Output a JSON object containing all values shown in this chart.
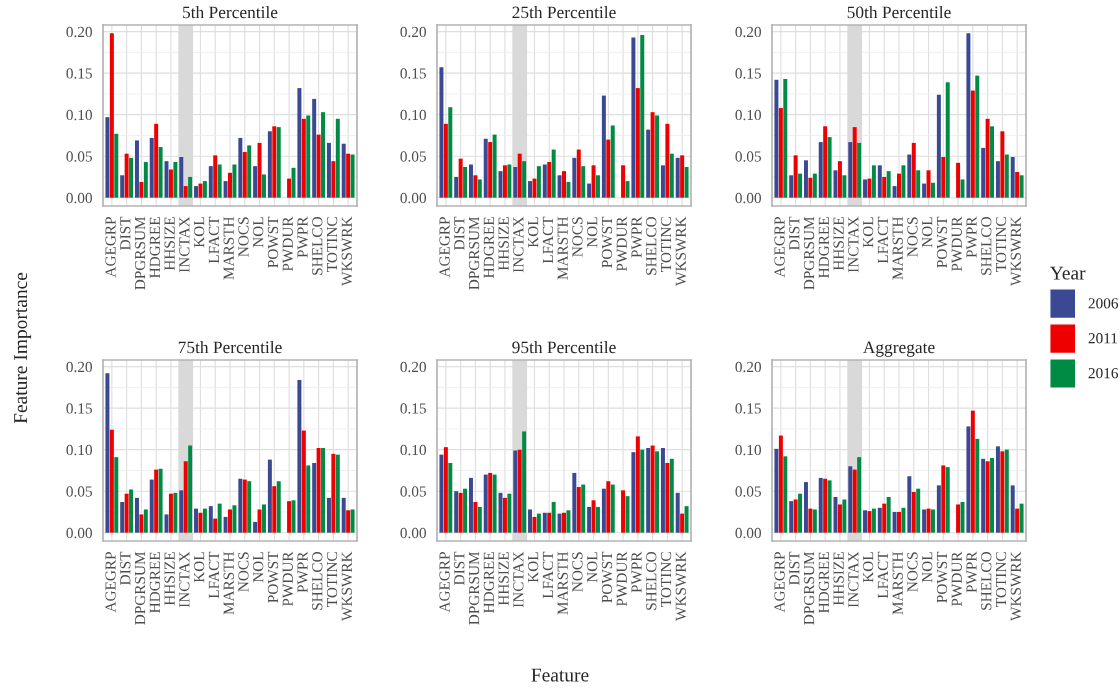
{
  "chart_data": [
    {
      "type": "bar",
      "title": "5th Percentile",
      "ylabel": "Feature Importance",
      "legend_title": "Year",
      "categories": [
        "AGEGRP",
        "DIST",
        "DPGRSUM",
        "HDGREE",
        "HHSIZE",
        "INCTAX",
        "KOL",
        "LFACT",
        "MARSTH",
        "NOCS",
        "NOL",
        "POWST",
        "PWDUR",
        "PWPR",
        "SHELCO",
        "TOTINC",
        "WKSWRK"
      ],
      "series": [
        {
          "name": "2006",
          "color": "#3b4992",
          "values": [
            0.097,
            0.027,
            0.069,
            0.072,
            0.044,
            0.049,
            0.014,
            0.038,
            0.02,
            0.072,
            0.038,
            0.08,
            null,
            0.132,
            0.119,
            0.066,
            0.065
          ]
        },
        {
          "name": "2011",
          "color": "#ee0000",
          "values": [
            0.198,
            0.053,
            0.019,
            0.089,
            0.034,
            0.014,
            0.017,
            0.051,
            0.03,
            0.055,
            0.066,
            0.086,
            0.023,
            0.095,
            0.076,
            0.044,
            0.053
          ]
        },
        {
          "name": "2016",
          "color": "#008b45",
          "values": [
            0.077,
            0.048,
            0.043,
            0.061,
            0.043,
            0.025,
            0.02,
            0.04,
            0.04,
            0.063,
            0.028,
            0.085,
            0.036,
            0.099,
            0.103,
            0.095,
            0.052
          ]
        }
      ],
      "ylim": [
        -0.01,
        0.208
      ],
      "yticks": [
        {
          "value": 0,
          "label": "0.00"
        },
        {
          "value": 0.05,
          "label": "0.05"
        },
        {
          "value": 0.1,
          "label": "0.10"
        },
        {
          "value": 0.15,
          "label": "0.15"
        },
        {
          "value": 0.2,
          "label": "0.20"
        }
      ],
      "bands": [
        {
          "axis": "x",
          "from": "INCTAX",
          "to": "INCTAX",
          "color": "#d9d9d9"
        }
      ],
      "grid": true,
      "legend": "right"
    },
    {
      "type": "bar",
      "title": "25th Percentile",
      "categories": [
        "AGEGRP",
        "DIST",
        "DPGRSUM",
        "HDGREE",
        "HHSIZE",
        "INCTAX",
        "KOL",
        "LFACT",
        "MARSTH",
        "NOCS",
        "NOL",
        "POWST",
        "PWDUR",
        "PWPR",
        "SHELCO",
        "TOTINC",
        "WKSWRK"
      ],
      "series": [
        {
          "name": "2006",
          "color": "#3b4992",
          "values": [
            0.157,
            0.025,
            0.04,
            0.071,
            0.032,
            0.037,
            0.02,
            0.04,
            0.027,
            0.048,
            0.017,
            0.123,
            null,
            0.193,
            0.082,
            0.039,
            0.048
          ]
        },
        {
          "name": "2011",
          "color": "#ee0000",
          "values": [
            0.089,
            0.047,
            0.027,
            0.067,
            0.039,
            0.053,
            0.023,
            0.043,
            0.032,
            0.058,
            0.039,
            0.07,
            0.039,
            0.132,
            0.103,
            0.089,
            0.051
          ]
        },
        {
          "name": "2016",
          "color": "#008b45",
          "values": [
            0.109,
            0.037,
            0.022,
            0.076,
            0.04,
            0.044,
            0.038,
            0.058,
            0.019,
            0.038,
            0.027,
            0.087,
            0.02,
            0.196,
            0.099,
            0.053,
            0.037
          ]
        }
      ],
      "ylim": [
        -0.01,
        0.208
      ],
      "yticks": [
        {
          "value": 0,
          "label": "0.00"
        },
        {
          "value": 0.05,
          "label": "0.05"
        },
        {
          "value": 0.1,
          "label": "0.10"
        },
        {
          "value": 0.15,
          "label": "0.15"
        },
        {
          "value": 0.2,
          "label": "0.20"
        }
      ],
      "bands": [
        {
          "axis": "x",
          "from": "INCTAX",
          "to": "INCTAX",
          "color": "#d9d9d9"
        }
      ],
      "grid": true,
      "legend": false
    },
    {
      "type": "bar",
      "title": "50th Percentile",
      "categories": [
        "AGEGRP",
        "DIST",
        "DPGRSUM",
        "HDGREE",
        "HHSIZE",
        "INCTAX",
        "KOL",
        "LFACT",
        "MARSTH",
        "NOCS",
        "NOL",
        "POWST",
        "PWDUR",
        "PWPR",
        "SHELCO",
        "TOTINC",
        "WKSWRK"
      ],
      "series": [
        {
          "name": "2006",
          "color": "#3b4992",
          "values": [
            0.142,
            0.027,
            0.045,
            0.067,
            0.033,
            0.067,
            0.022,
            0.039,
            0.014,
            0.052,
            0.017,
            0.124,
            null,
            0.198,
            0.06,
            0.044,
            0.049
          ]
        },
        {
          "name": "2011",
          "color": "#ee0000",
          "values": [
            0.108,
            0.051,
            0.024,
            0.086,
            0.044,
            0.085,
            0.023,
            0.025,
            0.029,
            0.066,
            0.033,
            0.049,
            0.042,
            0.129,
            0.095,
            0.08,
            0.031
          ]
        },
        {
          "name": "2016",
          "color": "#008b45",
          "values": [
            0.143,
            0.029,
            0.029,
            0.073,
            0.027,
            0.066,
            0.039,
            0.032,
            0.039,
            0.033,
            0.018,
            0.139,
            0.022,
            0.147,
            0.086,
            0.052,
            0.027
          ]
        }
      ],
      "ylim": [
        -0.01,
        0.208
      ],
      "yticks": [
        {
          "value": 0,
          "label": "0.00"
        },
        {
          "value": 0.05,
          "label": "0.05"
        },
        {
          "value": 0.1,
          "label": "0.10"
        },
        {
          "value": 0.15,
          "label": "0.15"
        },
        {
          "value": 0.2,
          "label": "0.20"
        }
      ],
      "bands": [
        {
          "axis": "x",
          "from": "INCTAX",
          "to": "INCTAX",
          "color": "#d9d9d9"
        }
      ],
      "grid": true,
      "legend": false
    },
    {
      "type": "bar",
      "title": "75th Percentile",
      "categories": [
        "AGEGRP",
        "DIST",
        "DPGRSUM",
        "HDGREE",
        "HHSIZE",
        "INCTAX",
        "KOL",
        "LFACT",
        "MARSTH",
        "NOCS",
        "NOL",
        "POWST",
        "PWDUR",
        "PWPR",
        "SHELCO",
        "TOTINC",
        "WKSWRK"
      ],
      "series": [
        {
          "name": "2006",
          "color": "#3b4992",
          "values": [
            0.192,
            0.037,
            0.042,
            0.064,
            0.022,
            0.051,
            0.029,
            0.032,
            0.019,
            0.065,
            0.013,
            0.088,
            null,
            0.184,
            0.084,
            0.042,
            0.042
          ]
        },
        {
          "name": "2011",
          "color": "#ee0000",
          "values": [
            0.124,
            0.047,
            0.022,
            0.076,
            0.047,
            0.086,
            0.024,
            0.017,
            0.028,
            0.064,
            0.028,
            0.056,
            0.038,
            0.123,
            0.102,
            0.095,
            0.027
          ]
        },
        {
          "name": "2016",
          "color": "#008b45",
          "values": [
            0.091,
            0.052,
            0.028,
            0.077,
            0.048,
            0.105,
            0.029,
            0.035,
            0.033,
            0.062,
            0.034,
            0.062,
            0.039,
            0.081,
            0.102,
            0.094,
            0.028
          ]
        }
      ],
      "ylim": [
        -0.01,
        0.208
      ],
      "yticks": [
        {
          "value": 0,
          "label": "0.00"
        },
        {
          "value": 0.05,
          "label": "0.05"
        },
        {
          "value": 0.1,
          "label": "0.10"
        },
        {
          "value": 0.15,
          "label": "0.15"
        },
        {
          "value": 0.2,
          "label": "0.20"
        }
      ],
      "bands": [
        {
          "axis": "x",
          "from": "INCTAX",
          "to": "INCTAX",
          "color": "#d9d9d9"
        }
      ],
      "grid": true,
      "legend": false
    },
    {
      "type": "bar",
      "title": "95th Percentile",
      "xlabel": "Feature",
      "categories": [
        "AGEGRP",
        "DIST",
        "DPGRSUM",
        "HDGREE",
        "HHSIZE",
        "INCTAX",
        "KOL",
        "LFACT",
        "MARSTH",
        "NOCS",
        "NOL",
        "POWST",
        "PWDUR",
        "PWPR",
        "SHELCO",
        "TOTINC",
        "WKSWRK"
      ],
      "series": [
        {
          "name": "2006",
          "color": "#3b4992",
          "values": [
            0.094,
            0.05,
            0.066,
            0.07,
            0.048,
            0.099,
            0.028,
            0.024,
            0.023,
            0.072,
            0.031,
            0.053,
            null,
            0.097,
            0.102,
            0.102,
            0.048
          ]
        },
        {
          "name": "2011",
          "color": "#ee0000",
          "values": [
            0.103,
            0.048,
            0.037,
            0.072,
            0.042,
            0.1,
            0.019,
            0.024,
            0.024,
            0.055,
            0.039,
            0.062,
            0.051,
            0.116,
            0.105,
            0.084,
            0.023
          ]
        },
        {
          "name": "2016",
          "color": "#008b45",
          "values": [
            0.084,
            0.053,
            0.031,
            0.07,
            0.047,
            0.122,
            0.023,
            0.037,
            0.027,
            0.058,
            0.031,
            0.058,
            0.044,
            0.1,
            0.098,
            0.089,
            0.032
          ]
        }
      ],
      "ylim": [
        -0.01,
        0.208
      ],
      "yticks": [
        {
          "value": 0,
          "label": "0.00"
        },
        {
          "value": 0.05,
          "label": "0.05"
        },
        {
          "value": 0.1,
          "label": "0.10"
        },
        {
          "value": 0.15,
          "label": "0.15"
        },
        {
          "value": 0.2,
          "label": "0.20"
        }
      ],
      "bands": [
        {
          "axis": "x",
          "from": "INCTAX",
          "to": "INCTAX",
          "color": "#d9d9d9"
        }
      ],
      "grid": true,
      "legend": false
    },
    {
      "type": "bar",
      "title": "Aggregate",
      "categories": [
        "AGEGRP",
        "DIST",
        "DPGRSUM",
        "HDGREE",
        "HHSIZE",
        "INCTAX",
        "KOL",
        "LFACT",
        "MARSTH",
        "NOCS",
        "NOL",
        "POWST",
        "PWDUR",
        "PWPR",
        "SHELCO",
        "TOTINC",
        "WKSWRK"
      ],
      "series": [
        {
          "name": "2006",
          "color": "#3b4992",
          "values": [
            0.101,
            0.038,
            0.061,
            0.066,
            0.043,
            0.08,
            0.027,
            0.03,
            0.025,
            0.068,
            0.028,
            0.057,
            null,
            0.128,
            0.089,
            0.104,
            0.057
          ]
        },
        {
          "name": "2011",
          "color": "#ee0000",
          "values": [
            0.117,
            0.04,
            0.029,
            0.065,
            0.034,
            0.076,
            0.026,
            0.035,
            0.025,
            0.049,
            0.029,
            0.081,
            0.034,
            0.147,
            0.086,
            0.098,
            0.029
          ]
        },
        {
          "name": "2016",
          "color": "#008b45",
          "values": [
            0.092,
            0.047,
            0.028,
            0.063,
            0.04,
            0.091,
            0.029,
            0.043,
            0.03,
            0.053,
            0.028,
            0.079,
            0.037,
            0.113,
            0.09,
            0.1,
            0.035
          ]
        }
      ],
      "ylim": [
        -0.01,
        0.208
      ],
      "yticks": [
        {
          "value": 0,
          "label": "0.00"
        },
        {
          "value": 0.05,
          "label": "0.05"
        },
        {
          "value": 0.1,
          "label": "0.10"
        },
        {
          "value": 0.15,
          "label": "0.15"
        },
        {
          "value": 0.2,
          "label": "0.20"
        }
      ],
      "bands": [
        {
          "axis": "x",
          "from": "INCTAX",
          "to": "INCTAX",
          "color": "#d9d9d9"
        }
      ],
      "grid": true,
      "legend": false
    }
  ]
}
